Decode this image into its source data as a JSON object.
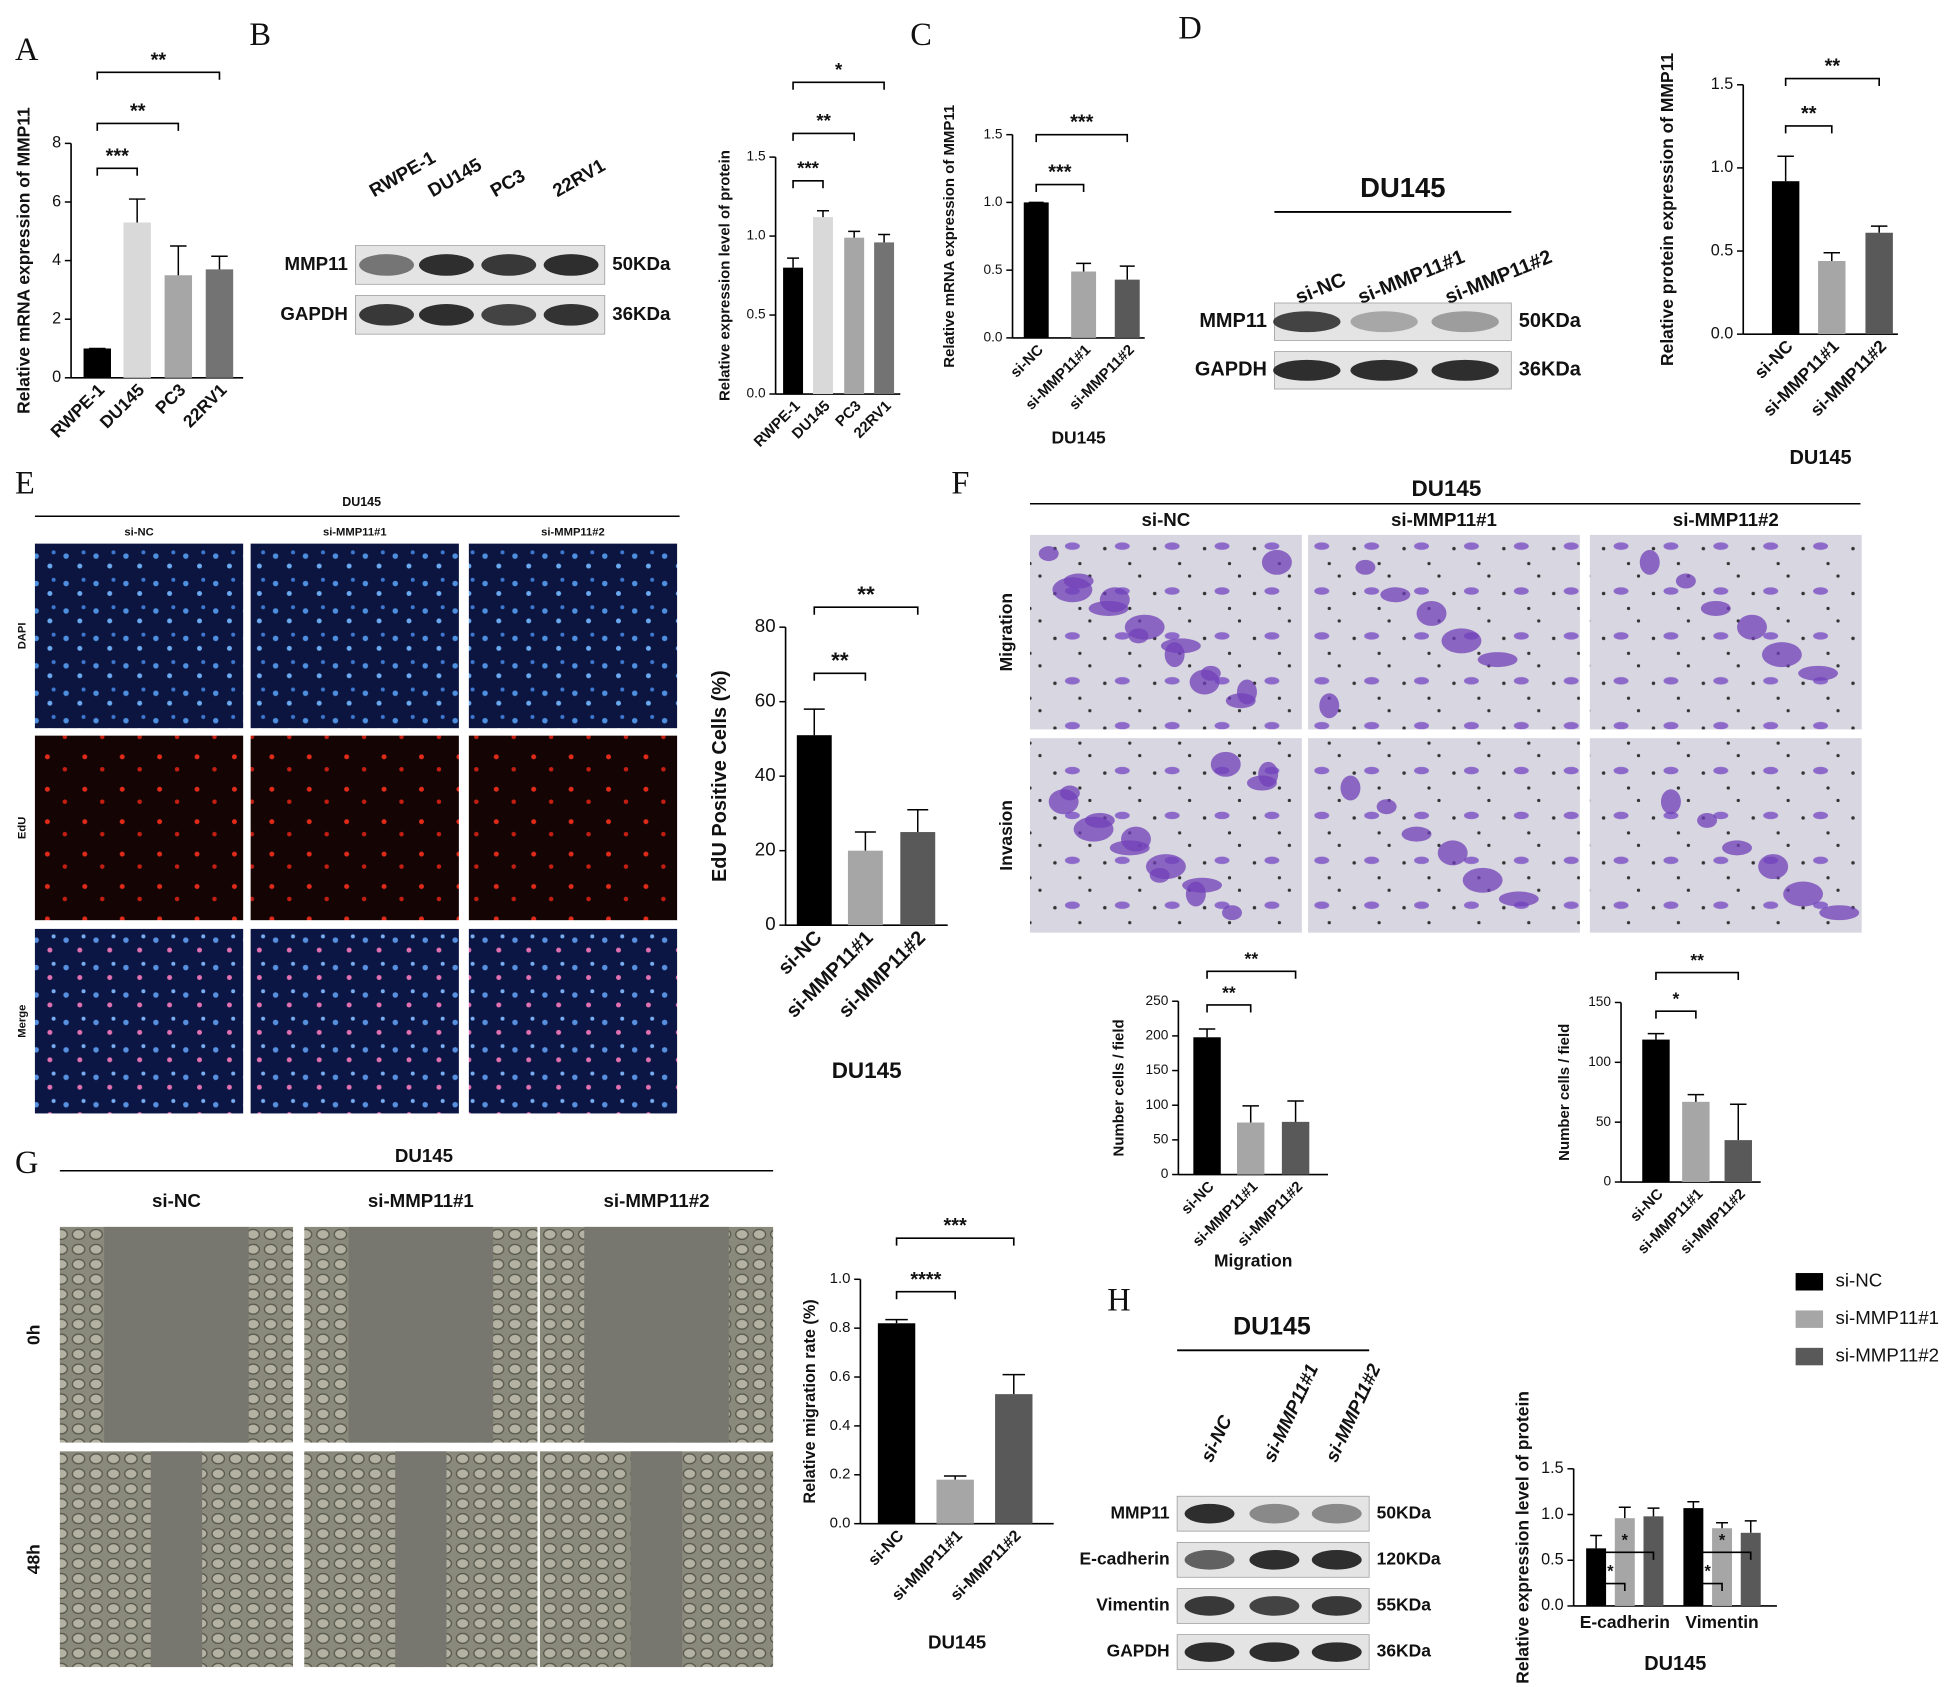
{
  "panel_labels": [
    "A",
    "B",
    "C",
    "D",
    "E",
    "F",
    "G",
    "H"
  ],
  "blot_b": {
    "lanes": [
      "RWPE-1",
      "DU145",
      "PC3",
      "22RV1"
    ],
    "rows": [
      "MMP11",
      "GAPDH"
    ],
    "sizes": [
      "50KDa",
      "36KDa"
    ]
  },
  "blot_d": {
    "title": "DU145",
    "lanes": [
      "si-NC",
      "si-MMP11#1",
      "si-MMP11#2"
    ],
    "rows": [
      "MMP11",
      "GAPDH"
    ],
    "sizes": [
      "50KDa",
      "36KDa"
    ]
  },
  "images_e": {
    "title": "DU145",
    "columns": [
      "si-NC",
      "si-MMP11#1",
      "si-MMP11#2"
    ],
    "rows": [
      "DAPI",
      "EdU",
      "Merge"
    ]
  },
  "images_f": {
    "title": "DU145",
    "columns": [
      "si-NC",
      "si-MMP11#1",
      "si-MMP11#2"
    ],
    "rows": [
      "Migration",
      "Invasion"
    ]
  },
  "images_g": {
    "title": "DU145",
    "columns": [
      "si-NC",
      "si-MMP11#1",
      "si-MMP11#2"
    ],
    "rows": [
      "0h",
      "48h"
    ]
  },
  "blot_h": {
    "title": "DU145",
    "lanes": [
      "si-NC",
      "si-MMP11#1",
      "si-MMP11#2"
    ],
    "rows": [
      "MMP11",
      "E-cadherin",
      "Vimentin",
      "GAPDH"
    ],
    "sizes": [
      "50KDa",
      "120KDa",
      "55KDa",
      "36KDa"
    ]
  },
  "chart_data": [
    {
      "type": "bar",
      "y_label": "Relative mRNA expression of MMP11",
      "categories": [
        "RWPE-1",
        "DU145",
        "PC3",
        "22RV1"
      ],
      "values": [
        1,
        5.3,
        3.5,
        3.7
      ],
      "errors": [
        0,
        0.8,
        1.0,
        0.45
      ],
      "colors": [
        "#000000",
        "#d9d9d9",
        "#a6a6a6",
        "#737373"
      ],
      "ylim": [
        0,
        8
      ],
      "yticks": [
        0,
        2,
        4,
        6,
        8
      ],
      "annotations": [
        "***",
        "**",
        "**"
      ]
    },
    {
      "type": "bar",
      "y_label": "Relative expression level of protein",
      "categories": [
        "RWPE-1",
        "DU145",
        "PC3",
        "22RV1"
      ],
      "values": [
        0.8,
        1.12,
        0.99,
        0.96
      ],
      "errors": [
        0.06,
        0.04,
        0.04,
        0.05
      ],
      "colors": [
        "#000000",
        "#d9d9d9",
        "#a6a6a6",
        "#737373"
      ],
      "ylim": [
        0,
        1.5
      ],
      "yticks": [
        {
          "value": 0,
          "label": "0.0"
        },
        0.5,
        {
          "value": 1,
          "label": "1.0"
        },
        1.5
      ],
      "annotations": [
        "***",
        "**",
        "*"
      ]
    },
    {
      "type": "bar",
      "y_label": "Relative mRNA expression of MMP11",
      "x_label": "DU145",
      "categories": [
        "si-NC",
        "si-MMP11#1",
        "si-MMP11#2"
      ],
      "values": [
        1.0,
        0.49,
        0.43
      ],
      "errors": [
        0,
        0.06,
        0.1
      ],
      "colors": [
        "#000000",
        "#a6a6a6",
        "#595959"
      ],
      "ylim": [
        0,
        1.5
      ],
      "yticks": [
        {
          "value": 0,
          "label": "0.0"
        },
        0.5,
        {
          "value": 1,
          "label": "1.0"
        },
        1.5
      ],
      "annotations": [
        "***",
        "***"
      ]
    },
    {
      "type": "bar",
      "y_label": "Relative protein expression of MMP11",
      "x_label": "DU145",
      "categories": [
        "si-NC",
        "si-MMP11#1",
        "si-MMP11#2"
      ],
      "values": [
        0.92,
        0.44,
        0.61
      ],
      "errors": [
        0.15,
        0.05,
        0.04
      ],
      "colors": [
        "#000000",
        "#a6a6a6",
        "#595959"
      ],
      "ylim": [
        0,
        1.5
      ],
      "yticks": [
        {
          "value": 0,
          "label": "0.0"
        },
        0.5,
        {
          "value": 1,
          "label": "1.0"
        },
        1.5
      ],
      "annotations": [
        "**",
        "**"
      ]
    },
    {
      "type": "bar",
      "y_label": "EdU Positive Cells (%)",
      "x_label": "DU145",
      "categories": [
        "si-NC",
        "si-MMP11#1",
        "si-MMP11#2"
      ],
      "values": [
        51,
        20,
        25
      ],
      "errors": [
        7,
        5,
        6
      ],
      "colors": [
        "#000000",
        "#a6a6a6",
        "#595959"
      ],
      "ylim": [
        0,
        80
      ],
      "yticks": [
        0,
        20,
        40,
        60,
        80
      ],
      "annotations": [
        "**",
        "**"
      ]
    },
    {
      "type": "bar",
      "y_label": "Number cells / field",
      "x_label": "Migration",
      "categories": [
        "si-NC",
        "si-MMP11#1",
        "si-MMP11#2"
      ],
      "values": [
        198,
        75,
        76
      ],
      "errors": [
        12,
        24,
        30
      ],
      "colors": [
        "#000000",
        "#a6a6a6",
        "#595959"
      ],
      "ylim": [
        0,
        250
      ],
      "yticks": [
        0,
        50,
        100,
        150,
        200,
        250
      ],
      "annotations": [
        "**",
        "**"
      ]
    },
    {
      "type": "bar",
      "y_label": "Number cells / field",
      "categories": [
        "si-NC",
        "si-MMP11#1",
        "si-MMP11#2"
      ],
      "values": [
        119,
        67,
        35
      ],
      "errors": [
        5,
        6,
        30
      ],
      "colors": [
        "#000000",
        "#a6a6a6",
        "#595959"
      ],
      "ylim": [
        0,
        150
      ],
      "yticks": [
        0,
        50,
        100,
        150
      ],
      "annotations": [
        "*",
        "**"
      ]
    },
    {
      "type": "bar",
      "y_label": "Relative migration rate (%)",
      "x_label": "DU145",
      "categories": [
        "si-NC",
        "si-MMP11#1",
        "si-MMP11#2"
      ],
      "values": [
        0.82,
        0.18,
        0.53
      ],
      "errors": [
        0.015,
        0.015,
        0.08
      ],
      "colors": [
        "#000000",
        "#a6a6a6",
        "#595959"
      ],
      "ylim": [
        0,
        1.0
      ],
      "yticks": [
        {
          "value": 0,
          "label": "0.0"
        },
        0.2,
        0.4,
        0.6,
        0.8,
        {
          "value": 1,
          "label": "1.0"
        }
      ],
      "annotations": [
        "****",
        "***"
      ]
    },
    {
      "type": "grouped_bar",
      "y_label": "Relative expression level of protein",
      "x_label": "DU145",
      "categories": [
        "E-cadherin",
        "Vimentin"
      ],
      "series": [
        {
          "name": "si-NC",
          "color": "#000000",
          "values": [
            0.63,
            1.07
          ],
          "errors": [
            0.14,
            0.07
          ]
        },
        {
          "name": "si-MMP11#1",
          "color": "#a6a6a6",
          "values": [
            0.96,
            0.85
          ],
          "errors": [
            0.12,
            0.06
          ]
        },
        {
          "name": "si-MMP11#2",
          "color": "#595959",
          "values": [
            0.98,
            0.8
          ],
          "errors": [
            0.09,
            0.13
          ]
        }
      ],
      "ylim": [
        0,
        1.5
      ],
      "yticks": [
        {
          "value": 0,
          "label": "0.0"
        },
        0.5,
        {
          "value": 1,
          "label": "1.0"
        },
        1.5
      ],
      "annotations": [
        [
          "*",
          "*"
        ],
        [
          "*",
          "*"
        ]
      ],
      "legend": "right"
    }
  ]
}
